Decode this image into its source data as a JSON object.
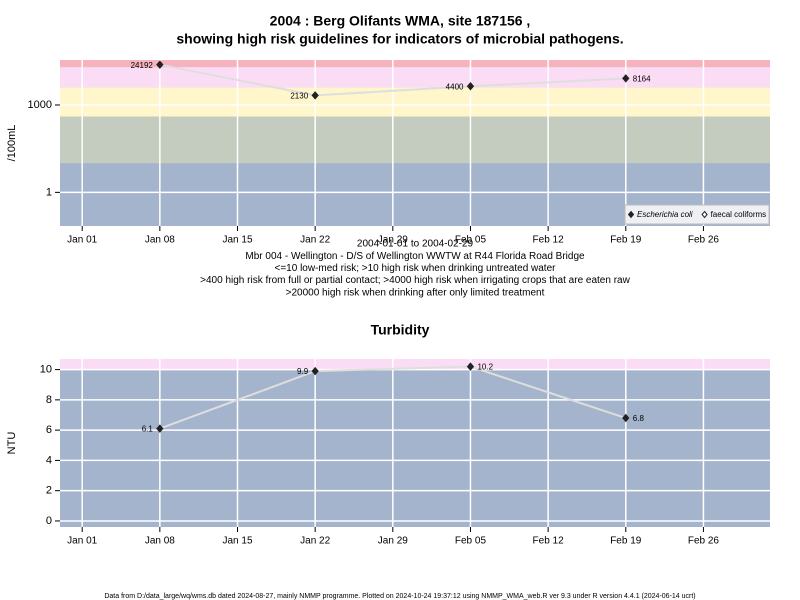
{
  "chart_data": [
    {
      "type": "line",
      "title": [
        "2004 : Berg Olifants WMA, site 187156 ,",
        "showing high risk guidelines for indicators of microbial pathogens."
      ],
      "ylabel": "/100mL",
      "log_y": true,
      "grid": true,
      "legend": "bottom-right",
      "notes": [
        "2004-01-01 to 2004-02-29",
        "Mbr 004 - Wellington - D/S of Wellington WWTW at R44 Florida Road Bridge",
        "<=10 low-med risk; >10 high risk when drinking untreated water",
        ">400 high risk from full or partial contact; >4000 high risk when irrigating crops that are eaten raw",
        ">20000 high risk when drinking after only limited treatment"
      ],
      "x": [
        "2004-01-08",
        "2004-01-22",
        "2004-02-05",
        "2004-02-19"
      ],
      "series": [
        {
          "name": "Escherichia coli",
          "color": "#222222",
          "line_color": "#dedede",
          "marker": "filled",
          "values": [
            24192,
            2130,
            4400,
            8164
          ]
        },
        {
          "name": "faecal coliforms",
          "color": "#222222",
          "line_color": "#dedede",
          "marker": "open",
          "values": [
            null,
            null,
            null,
            null
          ]
        }
      ],
      "xlim": [
        "2003-12-30",
        "2004-03-03"
      ],
      "xticks": [
        {
          "value": "2004-01-01",
          "label": "Jan 01"
        },
        {
          "value": "2004-01-08",
          "label": "Jan 08"
        },
        {
          "value": "2004-01-15",
          "label": "Jan 15"
        },
        {
          "value": "2004-01-22",
          "label": "Jan 22"
        },
        {
          "value": "2004-01-29",
          "label": "Jan 29"
        },
        {
          "value": "2004-02-05",
          "label": "Feb 05"
        },
        {
          "value": "2004-02-12",
          "label": "Feb 12"
        },
        {
          "value": "2004-02-19",
          "label": "Feb 19"
        },
        {
          "value": "2004-02-26",
          "label": "Feb 26"
        }
      ],
      "ylim": [
        0.07,
        35000
      ],
      "yticks": [
        1,
        1000
      ],
      "base_color": "#a3b4cc",
      "bands": [
        {
          "above": 10,
          "color": "#c4ccbf"
        },
        {
          "above": 400,
          "color": "#fff6cc"
        },
        {
          "above": 4000,
          "color": "#fbdcf5"
        },
        {
          "above": 20000,
          "color": "#f7b3bd"
        }
      ]
    },
    {
      "type": "line",
      "title": "Turbidity",
      "ylabel": "NTU",
      "log_y": false,
      "grid": true,
      "x": [
        "2004-01-08",
        "2004-01-22",
        "2004-02-05",
        "2004-02-19"
      ],
      "series": [
        {
          "name": "Turbidity",
          "color": "#222222",
          "line_color": "#dedede",
          "marker": "filled",
          "values": [
            6.1,
            9.9,
            10.2,
            6.8
          ]
        }
      ],
      "xlim": [
        "2003-12-30",
        "2004-03-03"
      ],
      "xticks": [
        {
          "value": "2004-01-01",
          "label": "Jan 01"
        },
        {
          "value": "2004-01-08",
          "label": "Jan 08"
        },
        {
          "value": "2004-01-15",
          "label": "Jan 15"
        },
        {
          "value": "2004-01-22",
          "label": "Jan 22"
        },
        {
          "value": "2004-01-29",
          "label": "Jan 29"
        },
        {
          "value": "2004-02-05",
          "label": "Feb 05"
        },
        {
          "value": "2004-02-12",
          "label": "Feb 12"
        },
        {
          "value": "2004-02-19",
          "label": "Feb 19"
        },
        {
          "value": "2004-02-26",
          "label": "Feb 26"
        }
      ],
      "ylim": [
        -0.4,
        10.7
      ],
      "yticks": [
        0,
        2,
        4,
        6,
        8,
        10
      ],
      "base_color": "#a3b4cc",
      "bands": [
        {
          "above": 10,
          "color": "#fbdcf5"
        }
      ]
    }
  ],
  "footer": "Data from D:/data_large/wq/wms.db dated 2024-08-27, mainly NMMP programme. Plotted on 2024-10-24 19:37:12 using NMMP_WMA_web.R ver 9.3 under R version 4.4.1 (2024-06-14 ucrt)"
}
